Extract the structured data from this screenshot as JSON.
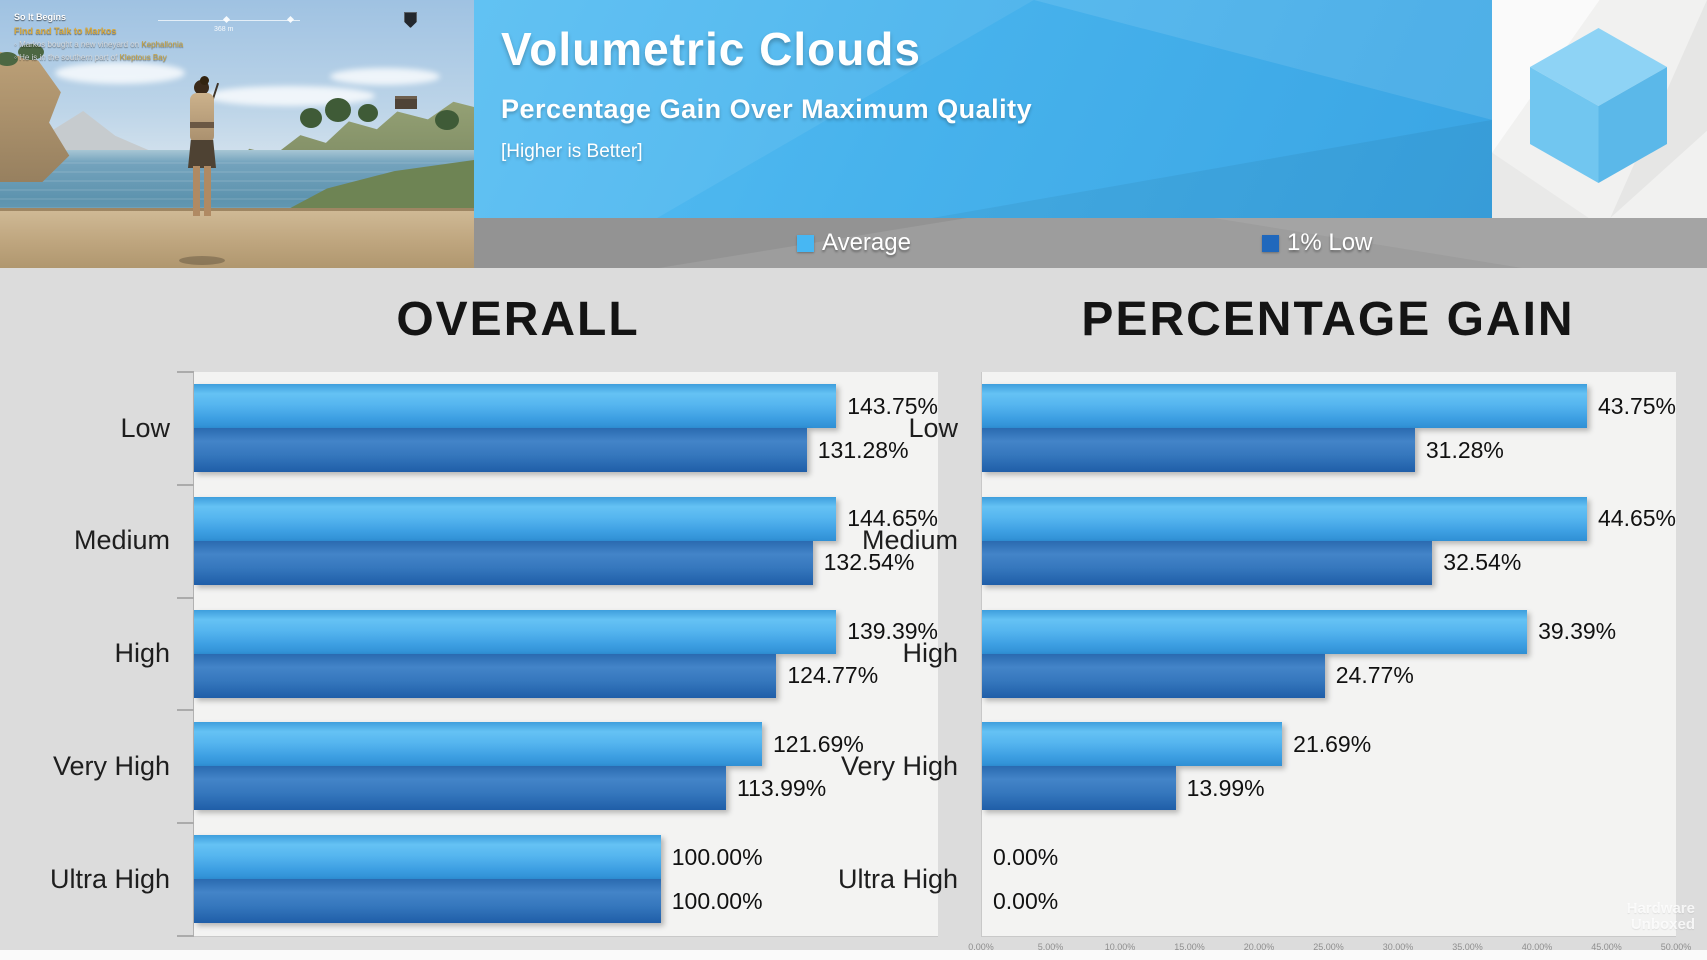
{
  "header": {
    "title": "Volumetric Clouds",
    "subtitle": "Percentage Gain Over Maximum Quality",
    "note": "[Higher is Better]",
    "legend": [
      {
        "label": "Average",
        "color": "#47b7f3"
      },
      {
        "label": "1% Low",
        "color": "#2068bc"
      }
    ]
  },
  "game_overlay": {
    "quest_title": "So It Begins",
    "quest_objective": "Find and Talk to Markos",
    "hints": [
      {
        "text": "Markos bought a new vineyard on ",
        "highlight": "Kephallonia"
      },
      {
        "text": "He is in the southern part of ",
        "highlight": "Kleptous Bay"
      }
    ],
    "compass_distance": "368 m"
  },
  "watermark": {
    "line1": "Hardware",
    "line2": "Unboxed"
  },
  "colors": {
    "average_bar": "#47b0ec",
    "one_percent_low_bar": "#2f72ba",
    "page_background": "#dcdcdc",
    "plot_background": "#f3f3f2",
    "header_blue": "#47b2ec",
    "legend_band": "#9d9d9d"
  },
  "chart_data": [
    {
      "type": "bar",
      "orientation": "horizontal",
      "title": "OVERALL",
      "categories": [
        "Low",
        "Medium",
        "High",
        "Very High",
        "Ultra High"
      ],
      "series": [
        {
          "name": "Average",
          "values": [
            143.75,
            144.65,
            139.39,
            121.69,
            100.0
          ],
          "labels": [
            "143.75%",
            "144.65%",
            "139.39%",
            "121.69%",
            "100.00%"
          ]
        },
        {
          "name": "1% Low",
          "values": [
            131.28,
            132.54,
            124.77,
            113.99,
            100.0
          ],
          "labels": [
            "131.28%",
            "132.54%",
            "124.77%",
            "113.99%",
            "100.00%"
          ]
        }
      ],
      "value_suffix": "%",
      "xlim": [
        0,
        160
      ],
      "scale_max": 159.4,
      "side_ticks": true,
      "grid": false,
      "legend_position": "top"
    },
    {
      "type": "bar",
      "orientation": "horizontal",
      "title": "PERCENTAGE GAIN",
      "categories": [
        "Low",
        "Medium",
        "High",
        "Very High",
        "Ultra High"
      ],
      "series": [
        {
          "name": "Average",
          "values": [
            43.75,
            44.65,
            39.39,
            21.69,
            0.0
          ],
          "labels": [
            "43.75%",
            "44.65%",
            "39.39%",
            "21.69%",
            "0.00%"
          ]
        },
        {
          "name": "1% Low",
          "values": [
            31.28,
            32.54,
            24.77,
            13.99,
            0.0
          ],
          "labels": [
            "31.28%",
            "32.54%",
            "24.77%",
            "13.99%",
            "0.00%"
          ]
        }
      ],
      "value_suffix": "%",
      "xlim": [
        0,
        50
      ],
      "scale_max": 50.15,
      "side_ticks": false,
      "x_ticks": [
        "0.00%",
        "5.00%",
        "10.00%",
        "15.00%",
        "20.00%",
        "25.00%",
        "30.00%",
        "35.00%",
        "40.00%",
        "45.00%",
        "50.00%"
      ],
      "grid": false,
      "legend_position": "top"
    }
  ]
}
